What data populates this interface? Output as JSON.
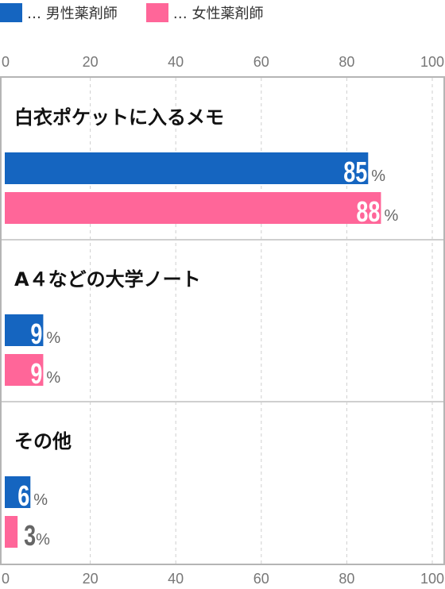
{
  "legend": [
    {
      "label": "… 男性薬剤師",
      "color": "#1565C0"
    },
    {
      "label": "… 女性薬剤師",
      "color": "#FF6699"
    }
  ],
  "chart_data": {
    "type": "bar",
    "orientation": "horizontal",
    "categories": [
      "白衣ポケットに入るメモ",
      "A４などの大学ノート",
      "その他"
    ],
    "series": [
      {
        "name": "男性薬剤師",
        "values": [
          85,
          9,
          6
        ],
        "color": "#1565C0"
      },
      {
        "name": "女性薬剤師",
        "values": [
          88,
          9,
          3
        ],
        "color": "#FF6699"
      }
    ],
    "value_suffix": "%",
    "xlim": [
      0,
      100
    ],
    "xticks": [
      "0",
      "20",
      "40",
      "60",
      "80",
      "100"
    ],
    "grid": true,
    "axis_top": true,
    "axis_bottom": true
  }
}
